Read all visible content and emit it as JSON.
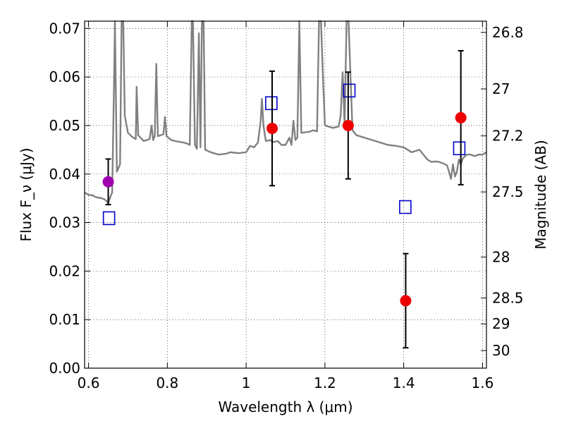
{
  "chart_data": {
    "type": "scatter",
    "xlabel": "Wavelength λ (μm)",
    "ylabel": "Flux F_ν (μJy)",
    "y2label": "Magnitude (AB)",
    "xlim": [
      0.59,
      1.61
    ],
    "ylim": [
      0.0,
      0.0715
    ],
    "grid": true,
    "x_ticks": [
      {
        "value": 0.6,
        "label": "0.6"
      },
      {
        "value": 0.8,
        "label": "0.8"
      },
      {
        "value": 1.0,
        "label": "1"
      },
      {
        "value": 1.2,
        "label": "1.2"
      },
      {
        "value": 1.4,
        "label": "1.4"
      },
      {
        "value": 1.6,
        "label": "1.6"
      }
    ],
    "y_ticks": [
      {
        "value": 0.0,
        "label": "0.00"
      },
      {
        "value": 0.01,
        "label": "0.01"
      },
      {
        "value": 0.02,
        "label": "0.02"
      },
      {
        "value": 0.03,
        "label": "0.03"
      },
      {
        "value": 0.04,
        "label": "0.04"
      },
      {
        "value": 0.05,
        "label": "0.05"
      },
      {
        "value": 0.06,
        "label": "0.06"
      },
      {
        "value": 0.07,
        "label": "0.07"
      }
    ],
    "y2_ticks": [
      {
        "value": 26.8,
        "label": "26.8"
      },
      {
        "value": 27.0,
        "label": "27"
      },
      {
        "value": 27.2,
        "label": "27.2"
      },
      {
        "value": 27.5,
        "label": "27.5"
      },
      {
        "value": 28.0,
        "label": "28"
      },
      {
        "value": 28.5,
        "label": "28.5"
      },
      {
        "value": 29.0,
        "label": "29"
      },
      {
        "value": 30.0,
        "label": "30"
      }
    ],
    "sed_model": {
      "color": "#808080",
      "points": [
        [
          0.59,
          0.0362
        ],
        [
          0.6,
          0.0357
        ],
        [
          0.61,
          0.0356
        ],
        [
          0.62,
          0.0352
        ],
        [
          0.63,
          0.0351
        ],
        [
          0.64,
          0.0348
        ],
        [
          0.645,
          0.0345
        ],
        [
          0.65,
          0.034
        ],
        [
          0.655,
          0.0352
        ],
        [
          0.66,
          0.0362
        ],
        [
          0.665,
          0.06
        ],
        [
          0.667,
          0.0715
        ],
        [
          0.672,
          0.0405
        ],
        [
          0.68,
          0.042
        ],
        [
          0.684,
          0.0715
        ],
        [
          0.688,
          0.0715
        ],
        [
          0.692,
          0.052
        ],
        [
          0.7,
          0.0485
        ],
        [
          0.71,
          0.0477
        ],
        [
          0.72,
          0.0472
        ],
        [
          0.722,
          0.058
        ],
        [
          0.726,
          0.048
        ],
        [
          0.74,
          0.0468
        ],
        [
          0.755,
          0.0472
        ],
        [
          0.76,
          0.05
        ],
        [
          0.764,
          0.047
        ],
        [
          0.768,
          0.0478
        ],
        [
          0.772,
          0.0627
        ],
        [
          0.776,
          0.0478
        ],
        [
          0.79,
          0.0482
        ],
        [
          0.794,
          0.0518
        ],
        [
          0.798,
          0.0478
        ],
        [
          0.81,
          0.047
        ],
        [
          0.82,
          0.0468
        ],
        [
          0.84,
          0.0465
        ],
        [
          0.85,
          0.0463
        ],
        [
          0.857,
          0.046
        ],
        [
          0.862,
          0.0715
        ],
        [
          0.865,
          0.0715
        ],
        [
          0.87,
          0.046
        ],
        [
          0.875,
          0.0452
        ],
        [
          0.88,
          0.069
        ],
        [
          0.884,
          0.0455
        ],
        [
          0.888,
          0.0715
        ],
        [
          0.892,
          0.0715
        ],
        [
          0.896,
          0.045
        ],
        [
          0.91,
          0.0445
        ],
        [
          0.93,
          0.044
        ],
        [
          0.95,
          0.0442
        ],
        [
          0.96,
          0.0445
        ],
        [
          0.98,
          0.0443
        ],
        [
          1.0,
          0.0445
        ],
        [
          1.01,
          0.0458
        ],
        [
          1.02,
          0.0455
        ],
        [
          1.03,
          0.0465
        ],
        [
          1.037,
          0.051
        ],
        [
          1.04,
          0.0555
        ],
        [
          1.044,
          0.05
        ],
        [
          1.05,
          0.0468
        ],
        [
          1.06,
          0.047
        ],
        [
          1.07,
          0.0466
        ],
        [
          1.08,
          0.0468
        ],
        [
          1.09,
          0.046
        ],
        [
          1.1,
          0.046
        ],
        [
          1.11,
          0.0475
        ],
        [
          1.115,
          0.046
        ],
        [
          1.12,
          0.051
        ],
        [
          1.125,
          0.047
        ],
        [
          1.13,
          0.0475
        ],
        [
          1.135,
          0.0715
        ],
        [
          1.14,
          0.0485
        ],
        [
          1.16,
          0.0487
        ],
        [
          1.17,
          0.049
        ],
        [
          1.18,
          0.0488
        ],
        [
          1.185,
          0.0715
        ],
        [
          1.19,
          0.0715
        ],
        [
          1.195,
          0.06
        ],
        [
          1.2,
          0.05
        ],
        [
          1.22,
          0.0495
        ],
        [
          1.235,
          0.0498
        ],
        [
          1.24,
          0.052
        ],
        [
          1.245,
          0.061
        ],
        [
          1.25,
          0.05
        ],
        [
          1.255,
          0.0715
        ],
        [
          1.26,
          0.0715
        ],
        [
          1.265,
          0.06
        ],
        [
          1.27,
          0.049
        ],
        [
          1.28,
          0.048
        ],
        [
          1.3,
          0.0475
        ],
        [
          1.32,
          0.047
        ],
        [
          1.34,
          0.0465
        ],
        [
          1.36,
          0.046
        ],
        [
          1.38,
          0.0458
        ],
        [
          1.4,
          0.0455
        ],
        [
          1.41,
          0.045
        ],
        [
          1.42,
          0.0445
        ],
        [
          1.44,
          0.045
        ],
        [
          1.45,
          0.044
        ],
        [
          1.46,
          0.043
        ],
        [
          1.47,
          0.0425
        ],
        [
          1.48,
          0.0426
        ],
        [
          1.49,
          0.0425
        ],
        [
          1.5,
          0.0422
        ],
        [
          1.51,
          0.0418
        ],
        [
          1.515,
          0.0405
        ],
        [
          1.52,
          0.039
        ],
        [
          1.525,
          0.042
        ],
        [
          1.53,
          0.0395
        ],
        [
          1.535,
          0.0405
        ],
        [
          1.54,
          0.043
        ],
        [
          1.545,
          0.042
        ],
        [
          1.55,
          0.0432
        ],
        [
          1.56,
          0.044
        ],
        [
          1.57,
          0.044
        ],
        [
          1.58,
          0.0437
        ],
        [
          1.59,
          0.044
        ],
        [
          1.6,
          0.044
        ],
        [
          1.61,
          0.0445
        ]
      ]
    },
    "series": [
      {
        "marker": "square-open",
        "color": "#0000cc",
        "points": [
          {
            "x": 0.652,
            "y": 0.0309
          },
          {
            "x": 1.064,
            "y": 0.0546
          },
          {
            "x": 1.262,
            "y": 0.0572
          },
          {
            "x": 1.404,
            "y": 0.0332
          },
          {
            "x": 1.541,
            "y": 0.0453
          }
        ]
      },
      {
        "marker": "circle",
        "color": "#ee0000",
        "points": [
          {
            "x": 1.066,
            "y": 0.0494,
            "err": 0.0118
          },
          {
            "x": 1.259,
            "y": 0.05,
            "err": 0.011
          },
          {
            "x": 1.405,
            "y": 0.0139,
            "err": 0.0097
          },
          {
            "x": 1.545,
            "y": 0.0516,
            "err": 0.0138
          }
        ]
      },
      {
        "marker": "circle",
        "color": "#a000b0",
        "points": [
          {
            "x": 0.65,
            "y": 0.0384,
            "err": 0.0047
          }
        ]
      }
    ]
  }
}
